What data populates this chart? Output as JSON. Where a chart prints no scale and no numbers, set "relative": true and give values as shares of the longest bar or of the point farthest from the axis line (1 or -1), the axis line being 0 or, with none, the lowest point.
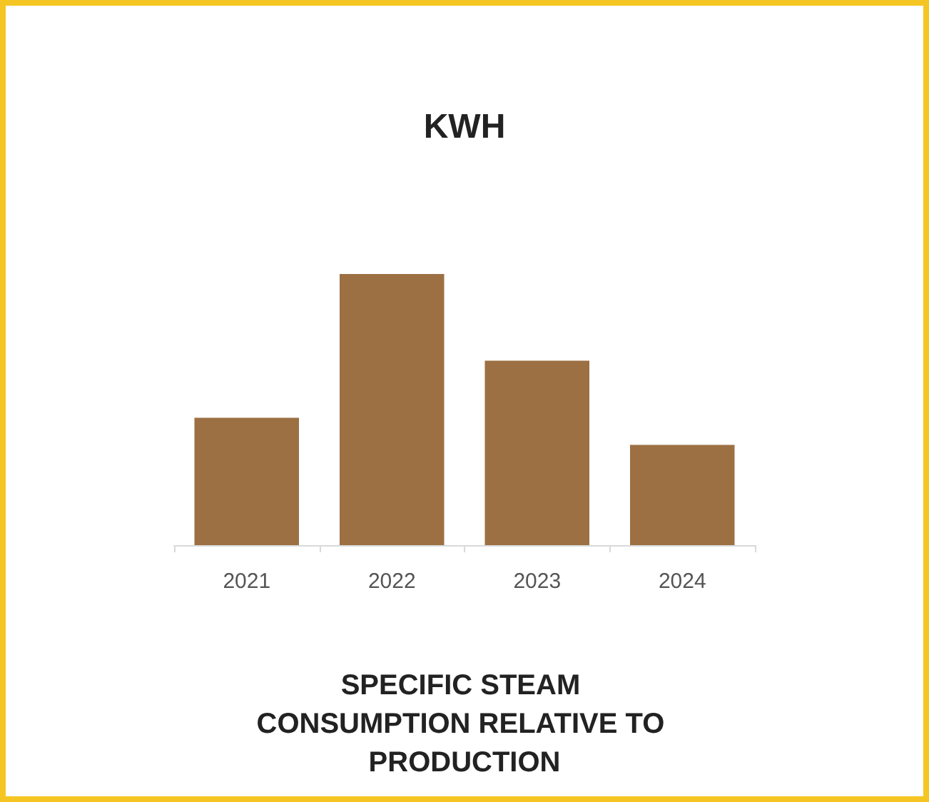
{
  "chart_data": {
    "type": "bar",
    "title": "KWH",
    "xlabel": "SPECIFIC STEAM CONSUMPTION RELATIVE TO PRODUCTION",
    "categories": [
      "2021",
      "2022",
      "2023",
      "2024"
    ],
    "values": [
      0.47,
      1,
      0.68,
      0.37
    ],
    "color": "#9c7043",
    "relative": true
  }
}
